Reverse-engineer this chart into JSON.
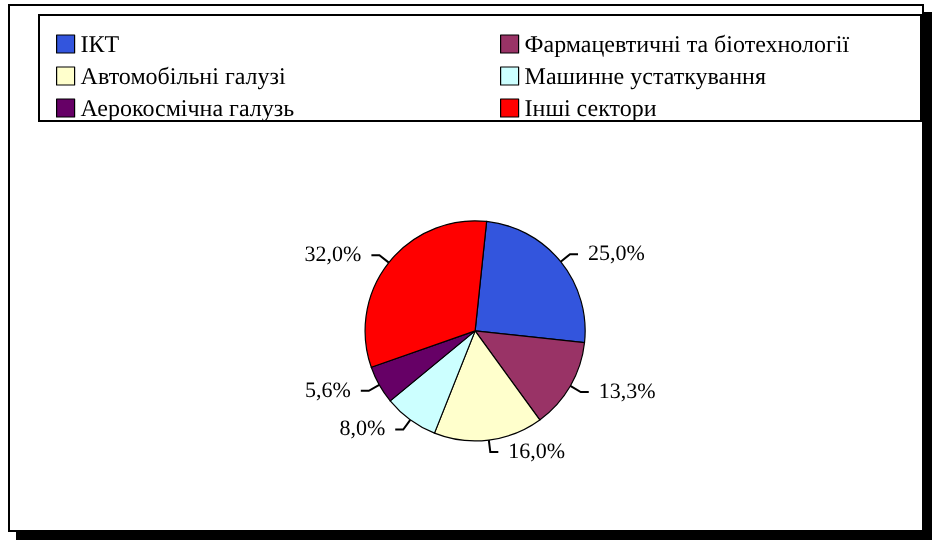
{
  "chart_data": {
    "type": "pie",
    "categories": [
      "ІКТ",
      "Фармацевтичні та біотехнології",
      "Автомобільні галузі",
      "Машинне устаткування",
      "Аерокосмічна галузь",
      "Інші сектори"
    ],
    "values": [
      25.0,
      13.3,
      16.0,
      8.0,
      5.6,
      32.0
    ],
    "colors": [
      "#3355dd",
      "#993366",
      "#ffffcc",
      "#ccffff",
      "#660066",
      "#ff0000"
    ],
    "value_labels": [
      "25,0%",
      "13,3%",
      "16,0%",
      "8,0%",
      "5,6%",
      "32,0%"
    ],
    "legend": "top"
  }
}
